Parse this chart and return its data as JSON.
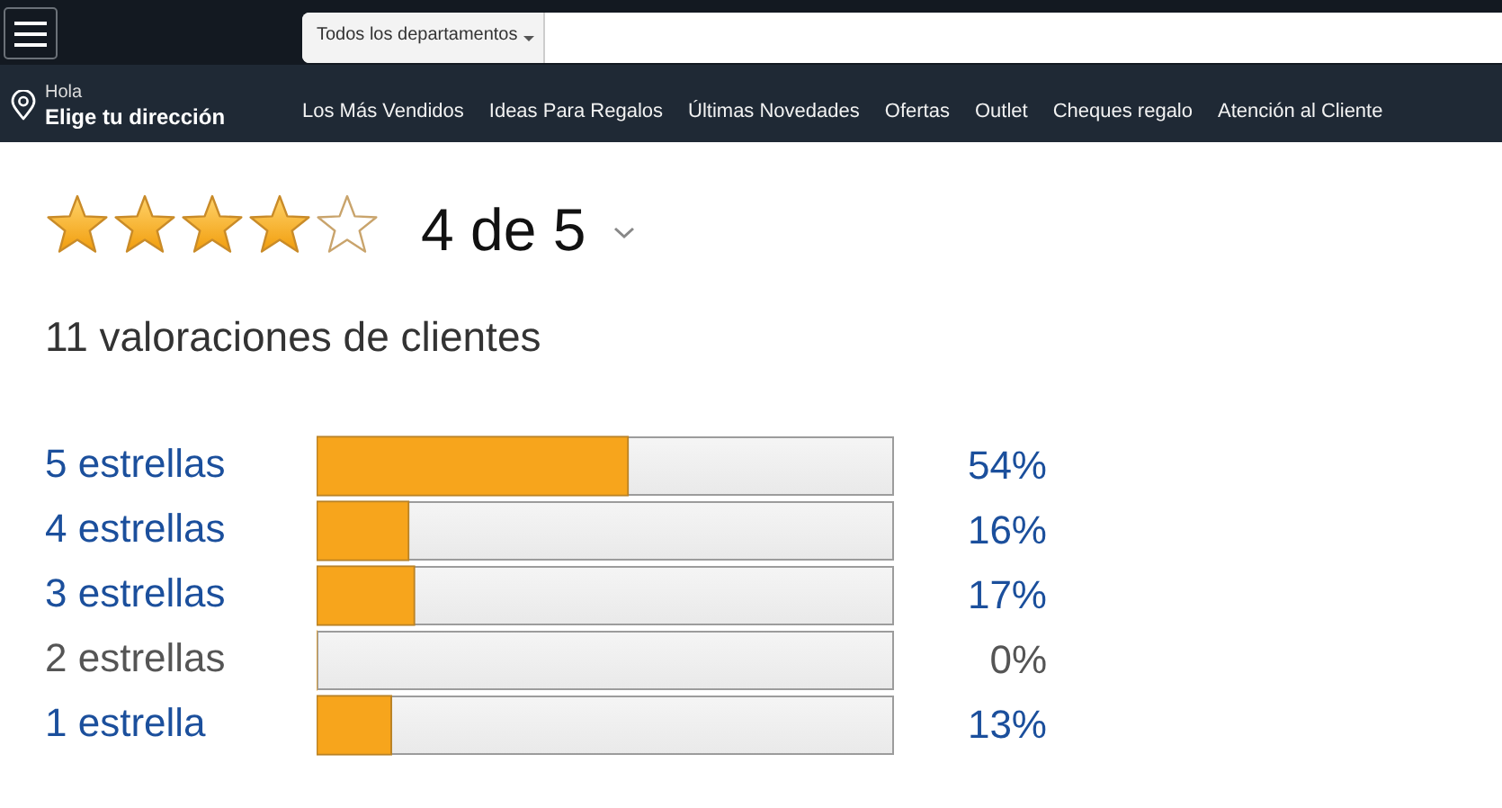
{
  "chart_data": {
    "type": "bar",
    "orientation": "horizontal",
    "title": "4 de 5",
    "subtitle": "11 valoraciones de clientes",
    "categories": [
      "5 estrellas",
      "4 estrellas",
      "3 estrellas",
      "2 estrellas",
      "1 estrella"
    ],
    "values": [
      54,
      16,
      17,
      0,
      13
    ],
    "value_labels": [
      "54%",
      "16%",
      "17%",
      "0%",
      "13%"
    ],
    "color": "#f7a51c",
    "xlim": [
      0,
      100
    ],
    "tick_labels": "y",
    "annotations": [
      "Hola",
      "Elige tu dirección",
      "Todos los departamentos",
      "Los Más Vendidos",
      "Ideas Para Regalos",
      "Últimas Novedades",
      "Ofertas",
      "Outlet",
      "Cheques regalo",
      "Atención al Cliente"
    ]
  }
}
